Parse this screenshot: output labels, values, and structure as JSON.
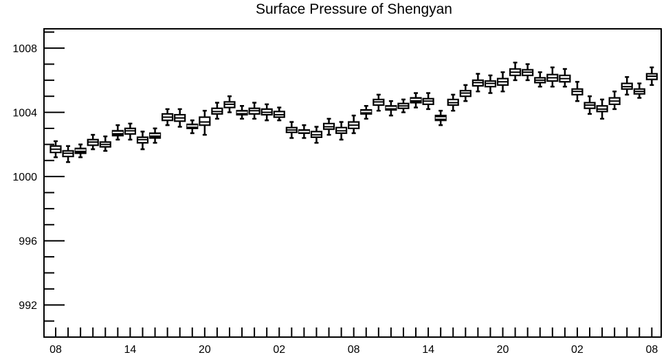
{
  "chart_data": {
    "type": "box",
    "title": "Surface Pressure of Shengyan",
    "xlabel": "",
    "ylabel": "",
    "ylim": [
      990,
      1009.2
    ],
    "y_ticks": [
      "992",
      "996",
      "1000",
      "1004",
      "1008"
    ],
    "y_tick_values": [
      992,
      996,
      1000,
      1004,
      1008
    ],
    "x_tick_labels": [
      "08",
      "14",
      "20",
      "02",
      "08",
      "14",
      "20",
      "02",
      "08"
    ],
    "x_tick_label_indices": [
      0,
      6,
      12,
      18,
      24,
      30,
      36,
      42,
      48
    ],
    "grid": false,
    "legend": "none",
    "box_color": "#000000",
    "series": [
      {
        "boxes": [
          {
            "min": 1001.2,
            "q1": 1001.5,
            "median": 1001.7,
            "q3": 1001.9,
            "max": 1002.2,
            "fill": "white"
          },
          {
            "min": 1000.9,
            "q1": 1001.25,
            "median": 1001.45,
            "q3": 1001.6,
            "max": 1001.9,
            "fill": "white"
          },
          {
            "min": 1001.2,
            "q1": 1001.45,
            "median": 1001.65,
            "q3": 1001.75,
            "max": 1002.0,
            "fill": "black"
          },
          {
            "min": 1001.7,
            "q1": 1001.95,
            "median": 1002.15,
            "q3": 1002.3,
            "max": 1002.6,
            "fill": "white"
          },
          {
            "min": 1001.6,
            "q1": 1001.85,
            "median": 1002.0,
            "q3": 1002.15,
            "max": 1002.5,
            "fill": "white"
          },
          {
            "min": 1002.3,
            "q1": 1002.55,
            "median": 1002.75,
            "q3": 1002.85,
            "max": 1003.2,
            "fill": "black"
          },
          {
            "min": 1002.3,
            "q1": 1002.65,
            "median": 1002.85,
            "q3": 1003.0,
            "max": 1003.3,
            "fill": "white"
          },
          {
            "min": 1001.7,
            "q1": 1002.1,
            "median": 1002.3,
            "q3": 1002.45,
            "max": 1002.8,
            "fill": "white"
          },
          {
            "min": 1002.1,
            "q1": 1002.4,
            "median": 1002.6,
            "q3": 1002.7,
            "max": 1003.0,
            "fill": "black"
          },
          {
            "min": 1003.2,
            "q1": 1003.5,
            "median": 1003.7,
            "q3": 1003.9,
            "max": 1004.2,
            "fill": "white"
          },
          {
            "min": 1003.1,
            "q1": 1003.45,
            "median": 1003.65,
            "q3": 1003.85,
            "max": 1004.2,
            "fill": "white"
          },
          {
            "min": 1002.7,
            "q1": 1003.0,
            "median": 1003.15,
            "q3": 1003.25,
            "max": 1003.5,
            "fill": "black"
          },
          {
            "min": 1002.6,
            "q1": 1003.2,
            "median": 1003.4,
            "q3": 1003.7,
            "max": 1004.1,
            "fill": "white"
          },
          {
            "min": 1003.6,
            "q1": 1003.9,
            "median": 1004.05,
            "q3": 1004.25,
            "max": 1004.6,
            "fill": "white"
          },
          {
            "min": 1004.0,
            "q1": 1004.3,
            "median": 1004.5,
            "q3": 1004.65,
            "max": 1005.0,
            "fill": "white"
          },
          {
            "min": 1003.6,
            "q1": 1003.85,
            "median": 1004.0,
            "q3": 1004.1,
            "max": 1004.4,
            "fill": "black"
          },
          {
            "min": 1003.6,
            "q1": 1003.9,
            "median": 1004.1,
            "q3": 1004.25,
            "max": 1004.6,
            "fill": "white"
          },
          {
            "min": 1003.5,
            "q1": 1003.85,
            "median": 1004.0,
            "q3": 1004.2,
            "max": 1004.5,
            "fill": "white"
          },
          {
            "min": 1003.5,
            "q1": 1003.7,
            "median": 1003.85,
            "q3": 1004.05,
            "max": 1004.3,
            "fill": "white"
          },
          {
            "min": 1002.4,
            "q1": 1002.75,
            "median": 1002.9,
            "q3": 1003.05,
            "max": 1003.4,
            "fill": "white"
          },
          {
            "min": 1002.4,
            "q1": 1002.7,
            "median": 1002.8,
            "q3": 1002.9,
            "max": 1003.2,
            "fill": "black"
          },
          {
            "min": 1002.1,
            "q1": 1002.45,
            "median": 1002.6,
            "q3": 1002.8,
            "max": 1003.1,
            "fill": "white"
          },
          {
            "min": 1002.6,
            "q1": 1002.95,
            "median": 1003.1,
            "q3": 1003.3,
            "max": 1003.6,
            "fill": "white"
          },
          {
            "min": 1002.3,
            "q1": 1002.7,
            "median": 1002.85,
            "q3": 1003.05,
            "max": 1003.4,
            "fill": "white"
          },
          {
            "min": 1002.7,
            "q1": 1003.0,
            "median": 1003.2,
            "q3": 1003.4,
            "max": 1003.8,
            "fill": "white"
          },
          {
            "min": 1003.6,
            "q1": 1003.9,
            "median": 1004.05,
            "q3": 1004.15,
            "max": 1004.4,
            "fill": "black"
          },
          {
            "min": 1004.1,
            "q1": 1004.45,
            "median": 1004.65,
            "q3": 1004.8,
            "max": 1005.1,
            "fill": "white"
          },
          {
            "min": 1003.8,
            "q1": 1004.15,
            "median": 1004.3,
            "q3": 1004.4,
            "max": 1004.7,
            "fill": "black"
          },
          {
            "min": 1004.0,
            "q1": 1004.25,
            "median": 1004.4,
            "q3": 1004.55,
            "max": 1004.8,
            "fill": "white"
          },
          {
            "min": 1004.3,
            "q1": 1004.6,
            "median": 1004.8,
            "q3": 1004.9,
            "max": 1005.2,
            "fill": "black"
          },
          {
            "min": 1004.2,
            "q1": 1004.5,
            "median": 1004.7,
            "q3": 1004.85,
            "max": 1005.2,
            "fill": "white"
          },
          {
            "min": 1003.2,
            "q1": 1003.5,
            "median": 1003.65,
            "q3": 1003.8,
            "max": 1004.1,
            "fill": "black"
          },
          {
            "min": 1004.1,
            "q1": 1004.45,
            "median": 1004.6,
            "q3": 1004.8,
            "max": 1005.1,
            "fill": "white"
          },
          {
            "min": 1004.7,
            "q1": 1005.0,
            "median": 1005.2,
            "q3": 1005.35,
            "max": 1005.7,
            "fill": "white"
          },
          {
            "min": 1005.3,
            "q1": 1005.65,
            "median": 1005.85,
            "q3": 1006.0,
            "max": 1006.4,
            "fill": "white"
          },
          {
            "min": 1005.2,
            "q1": 1005.6,
            "median": 1005.8,
            "q3": 1005.95,
            "max": 1006.3,
            "fill": "white"
          },
          {
            "min": 1005.3,
            "q1": 1005.7,
            "median": 1005.9,
            "q3": 1006.1,
            "max": 1006.5,
            "fill": "white"
          },
          {
            "min": 1006.0,
            "q1": 1006.3,
            "median": 1006.5,
            "q3": 1006.7,
            "max": 1007.1,
            "fill": "white"
          },
          {
            "min": 1006.0,
            "q1": 1006.3,
            "median": 1006.5,
            "q3": 1006.65,
            "max": 1007.0,
            "fill": "white"
          },
          {
            "min": 1005.6,
            "q1": 1005.85,
            "median": 1006.0,
            "q3": 1006.15,
            "max": 1006.5,
            "fill": "white"
          },
          {
            "min": 1005.6,
            "q1": 1005.95,
            "median": 1006.15,
            "q3": 1006.35,
            "max": 1006.8,
            "fill": "white"
          },
          {
            "min": 1005.6,
            "q1": 1005.9,
            "median": 1006.1,
            "q3": 1006.3,
            "max": 1006.7,
            "fill": "white"
          },
          {
            "min": 1004.7,
            "q1": 1005.1,
            "median": 1005.3,
            "q3": 1005.45,
            "max": 1005.9,
            "fill": "white"
          },
          {
            "min": 1003.9,
            "q1": 1004.25,
            "median": 1004.45,
            "q3": 1004.6,
            "max": 1005.0,
            "fill": "white"
          },
          {
            "min": 1003.6,
            "q1": 1004.05,
            "median": 1004.2,
            "q3": 1004.4,
            "max": 1004.8,
            "fill": "white"
          },
          {
            "min": 1004.2,
            "q1": 1004.5,
            "median": 1004.7,
            "q3": 1004.9,
            "max": 1005.3,
            "fill": "white"
          },
          {
            "min": 1005.1,
            "q1": 1005.45,
            "median": 1005.6,
            "q3": 1005.8,
            "max": 1006.2,
            "fill": "white"
          },
          {
            "min": 1004.9,
            "q1": 1005.15,
            "median": 1005.3,
            "q3": 1005.45,
            "max": 1005.8,
            "fill": "white"
          },
          {
            "min": 1005.7,
            "q1": 1006.05,
            "median": 1006.25,
            "q3": 1006.4,
            "max": 1006.8,
            "fill": "white"
          }
        ]
      }
    ]
  }
}
